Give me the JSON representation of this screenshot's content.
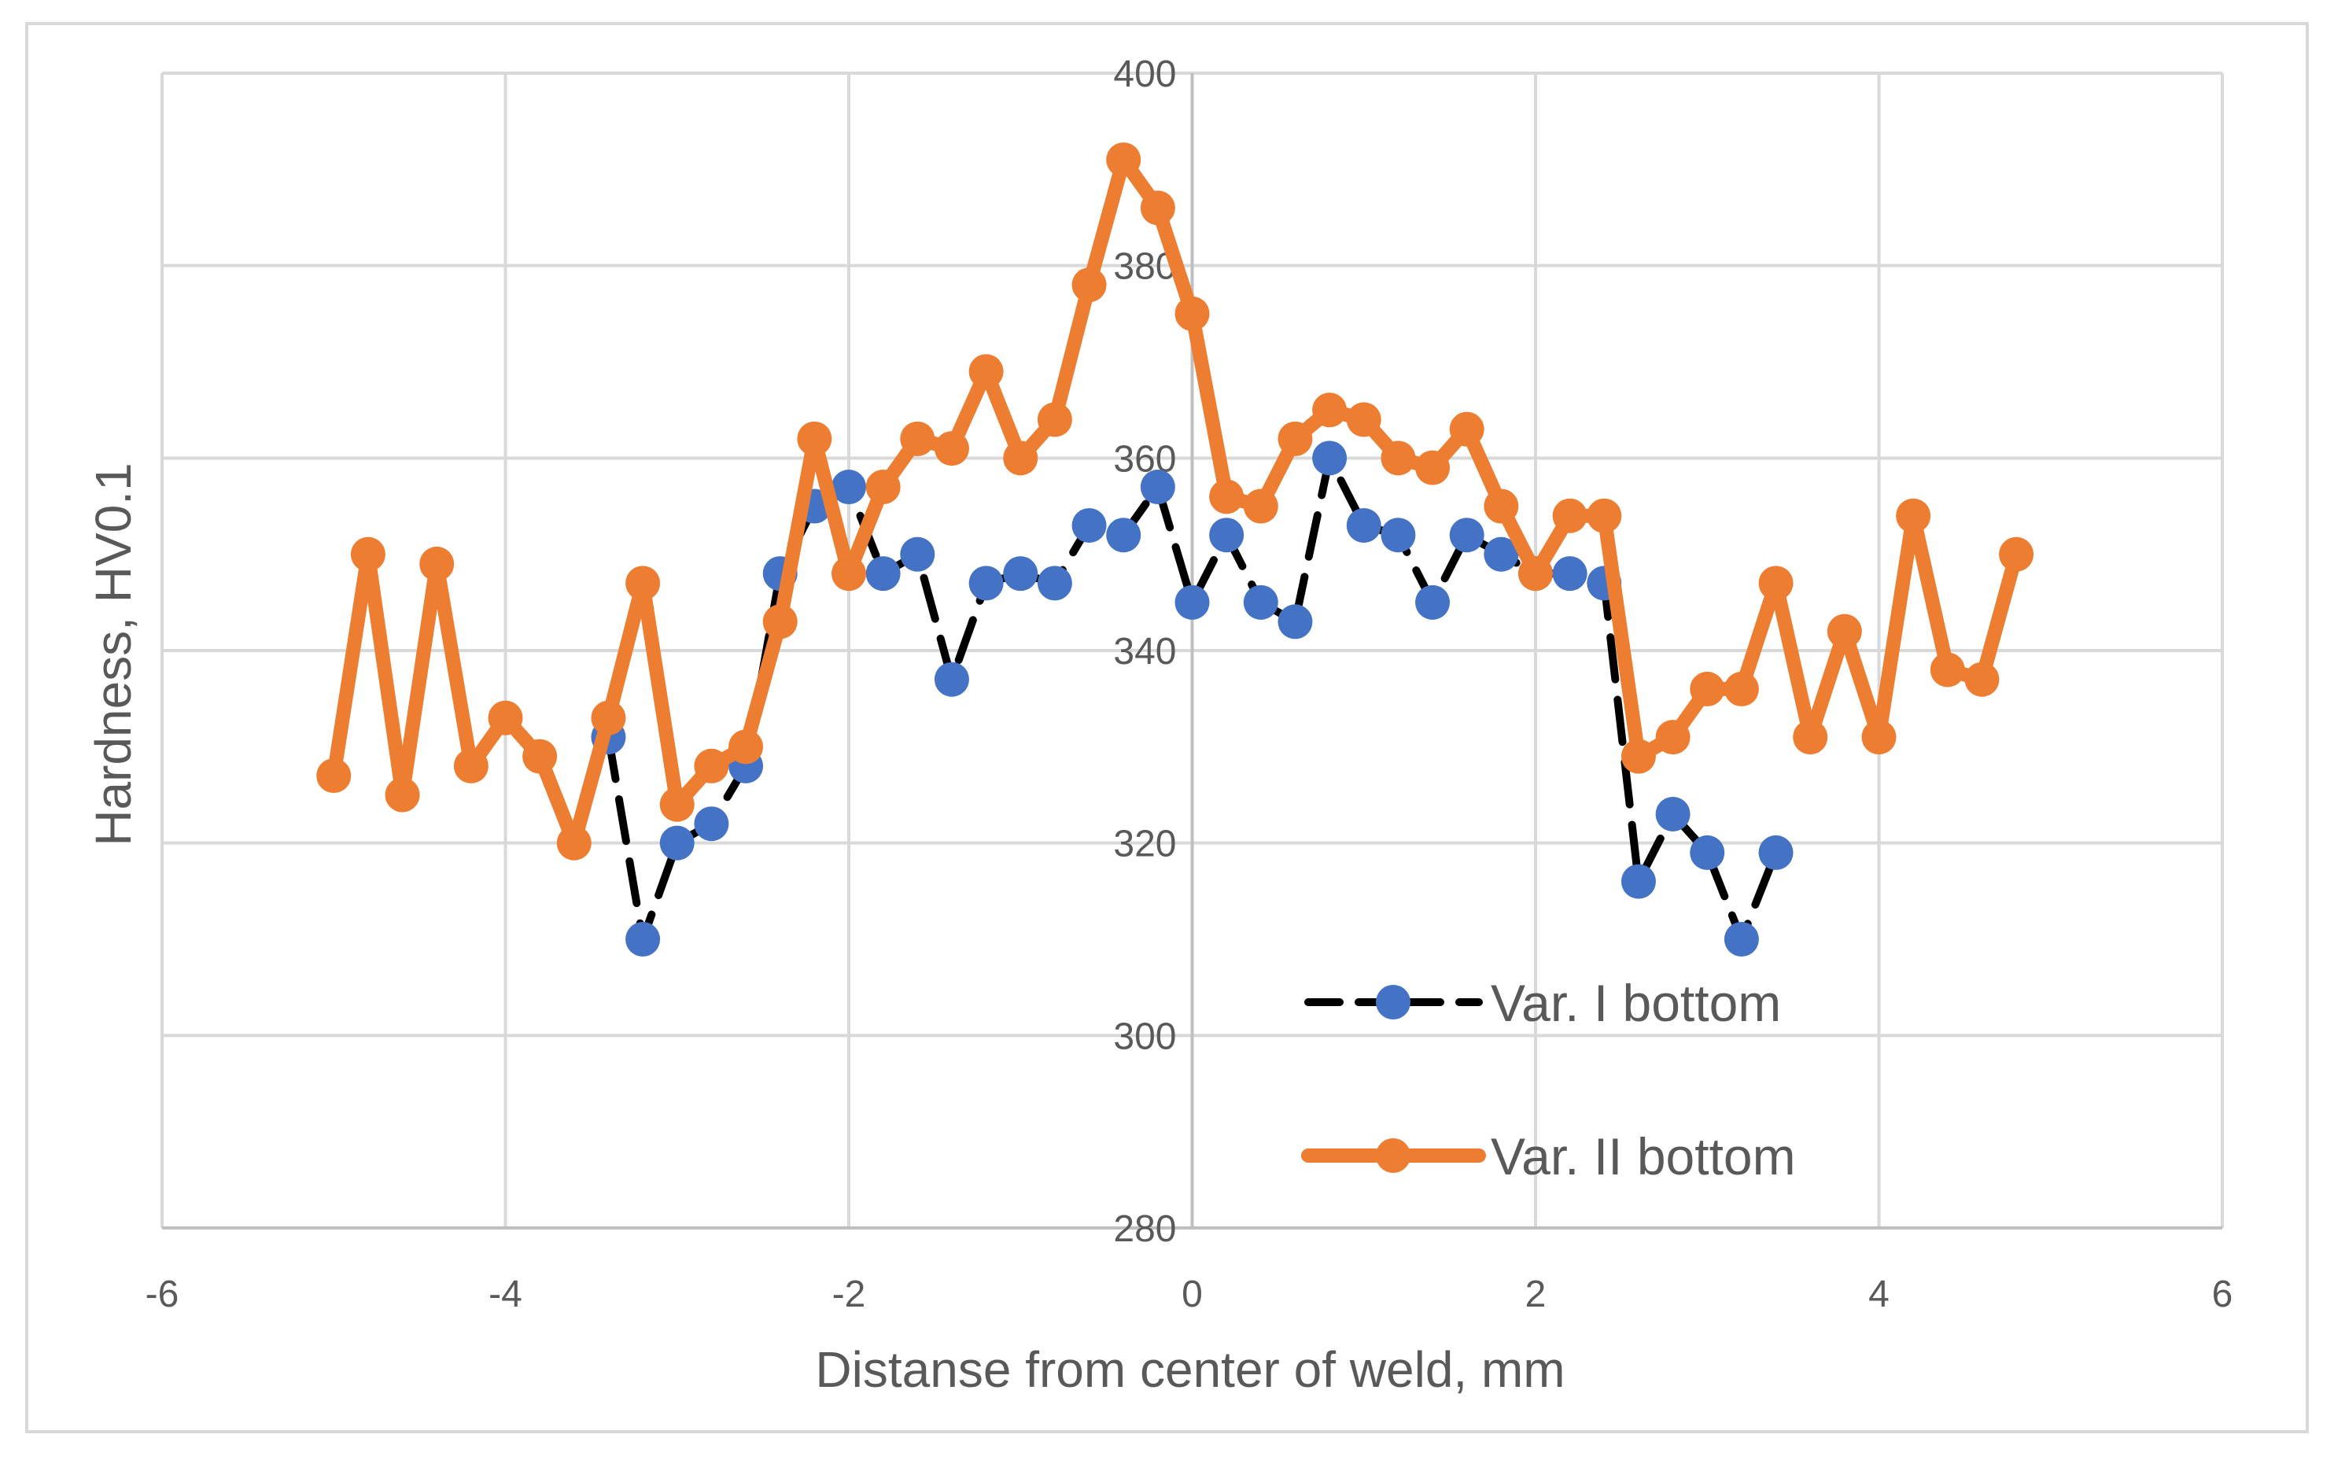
{
  "chart_data": {
    "type": "line",
    "title": "",
    "xlabel": "Distanse from center of weld, mm",
    "ylabel": "Hardness, HV0.1",
    "xlim": [
      -6,
      6
    ],
    "ylim": [
      280,
      400
    ],
    "x_ticks": [
      "-6",
      "-4",
      "-2",
      "0",
      "2",
      "4",
      "6"
    ],
    "y_ticks": [
      "280",
      "300",
      "320",
      "340",
      "360",
      "380",
      "400"
    ],
    "grid": true,
    "legend_position": "bottom-right",
    "series": [
      {
        "name": "Var. I bottom",
        "line_color": "#000000",
        "line_style": "dashed",
        "marker_color": "#4472C4",
        "points": [
          [
            -3.4,
            331
          ],
          [
            -3.2,
            310
          ],
          [
            -3.0,
            320
          ],
          [
            -2.8,
            322
          ],
          [
            -2.6,
            328
          ],
          [
            -2.4,
            348
          ],
          [
            -2.2,
            355
          ],
          [
            -2.0,
            357
          ],
          [
            -1.8,
            348
          ],
          [
            -1.6,
            350
          ],
          [
            -1.4,
            337
          ],
          [
            -1.2,
            347
          ],
          [
            -1.0,
            348
          ],
          [
            -0.8,
            347
          ],
          [
            -0.6,
            353
          ],
          [
            -0.4,
            352
          ],
          [
            -0.2,
            357
          ],
          [
            0.0,
            345
          ],
          [
            0.2,
            352
          ],
          [
            0.4,
            345
          ],
          [
            0.6,
            343
          ],
          [
            0.8,
            360
          ],
          [
            1.0,
            353
          ],
          [
            1.2,
            352
          ],
          [
            1.4,
            345
          ],
          [
            1.6,
            352
          ],
          [
            1.8,
            350
          ],
          [
            2.0,
            348
          ],
          [
            2.2,
            348
          ],
          [
            2.4,
            347
          ],
          [
            2.6,
            316
          ],
          [
            2.8,
            323
          ],
          [
            3.0,
            319
          ],
          [
            3.2,
            310
          ],
          [
            3.4,
            319
          ]
        ]
      },
      {
        "name": "Var. II bottom",
        "line_color": "#ED7D31",
        "line_style": "solid",
        "marker_color": "#ED7D31",
        "points": [
          [
            -5.0,
            327
          ],
          [
            -4.8,
            350
          ],
          [
            -4.6,
            325
          ],
          [
            -4.4,
            349
          ],
          [
            -4.2,
            328
          ],
          [
            -4.0,
            333
          ],
          [
            -3.8,
            329
          ],
          [
            -3.6,
            320
          ],
          [
            -3.4,
            333
          ],
          [
            -3.2,
            347
          ],
          [
            -3.0,
            324
          ],
          [
            -2.8,
            328
          ],
          [
            -2.6,
            330
          ],
          [
            -2.4,
            343
          ],
          [
            -2.2,
            362
          ],
          [
            -2.0,
            348
          ],
          [
            -1.8,
            357
          ],
          [
            -1.6,
            362
          ],
          [
            -1.4,
            361
          ],
          [
            -1.2,
            369
          ],
          [
            -1.0,
            360
          ],
          [
            -0.8,
            364
          ],
          [
            -0.6,
            378
          ],
          [
            -0.4,
            391
          ],
          [
            -0.2,
            386
          ],
          [
            0.0,
            375
          ],
          [
            0.2,
            356
          ],
          [
            0.4,
            355
          ],
          [
            0.6,
            362
          ],
          [
            0.8,
            365
          ],
          [
            1.0,
            364
          ],
          [
            1.2,
            360
          ],
          [
            1.4,
            359
          ],
          [
            1.6,
            363
          ],
          [
            1.8,
            355
          ],
          [
            2.0,
            348
          ],
          [
            2.2,
            354
          ],
          [
            2.4,
            354
          ],
          [
            2.6,
            329
          ],
          [
            2.8,
            331
          ],
          [
            3.0,
            336
          ],
          [
            3.2,
            336
          ],
          [
            3.4,
            347
          ],
          [
            3.6,
            331
          ],
          [
            3.8,
            342
          ],
          [
            4.0,
            331
          ],
          [
            4.2,
            354
          ],
          [
            4.4,
            338
          ],
          [
            4.6,
            337
          ],
          [
            4.8,
            350
          ]
        ]
      }
    ]
  }
}
